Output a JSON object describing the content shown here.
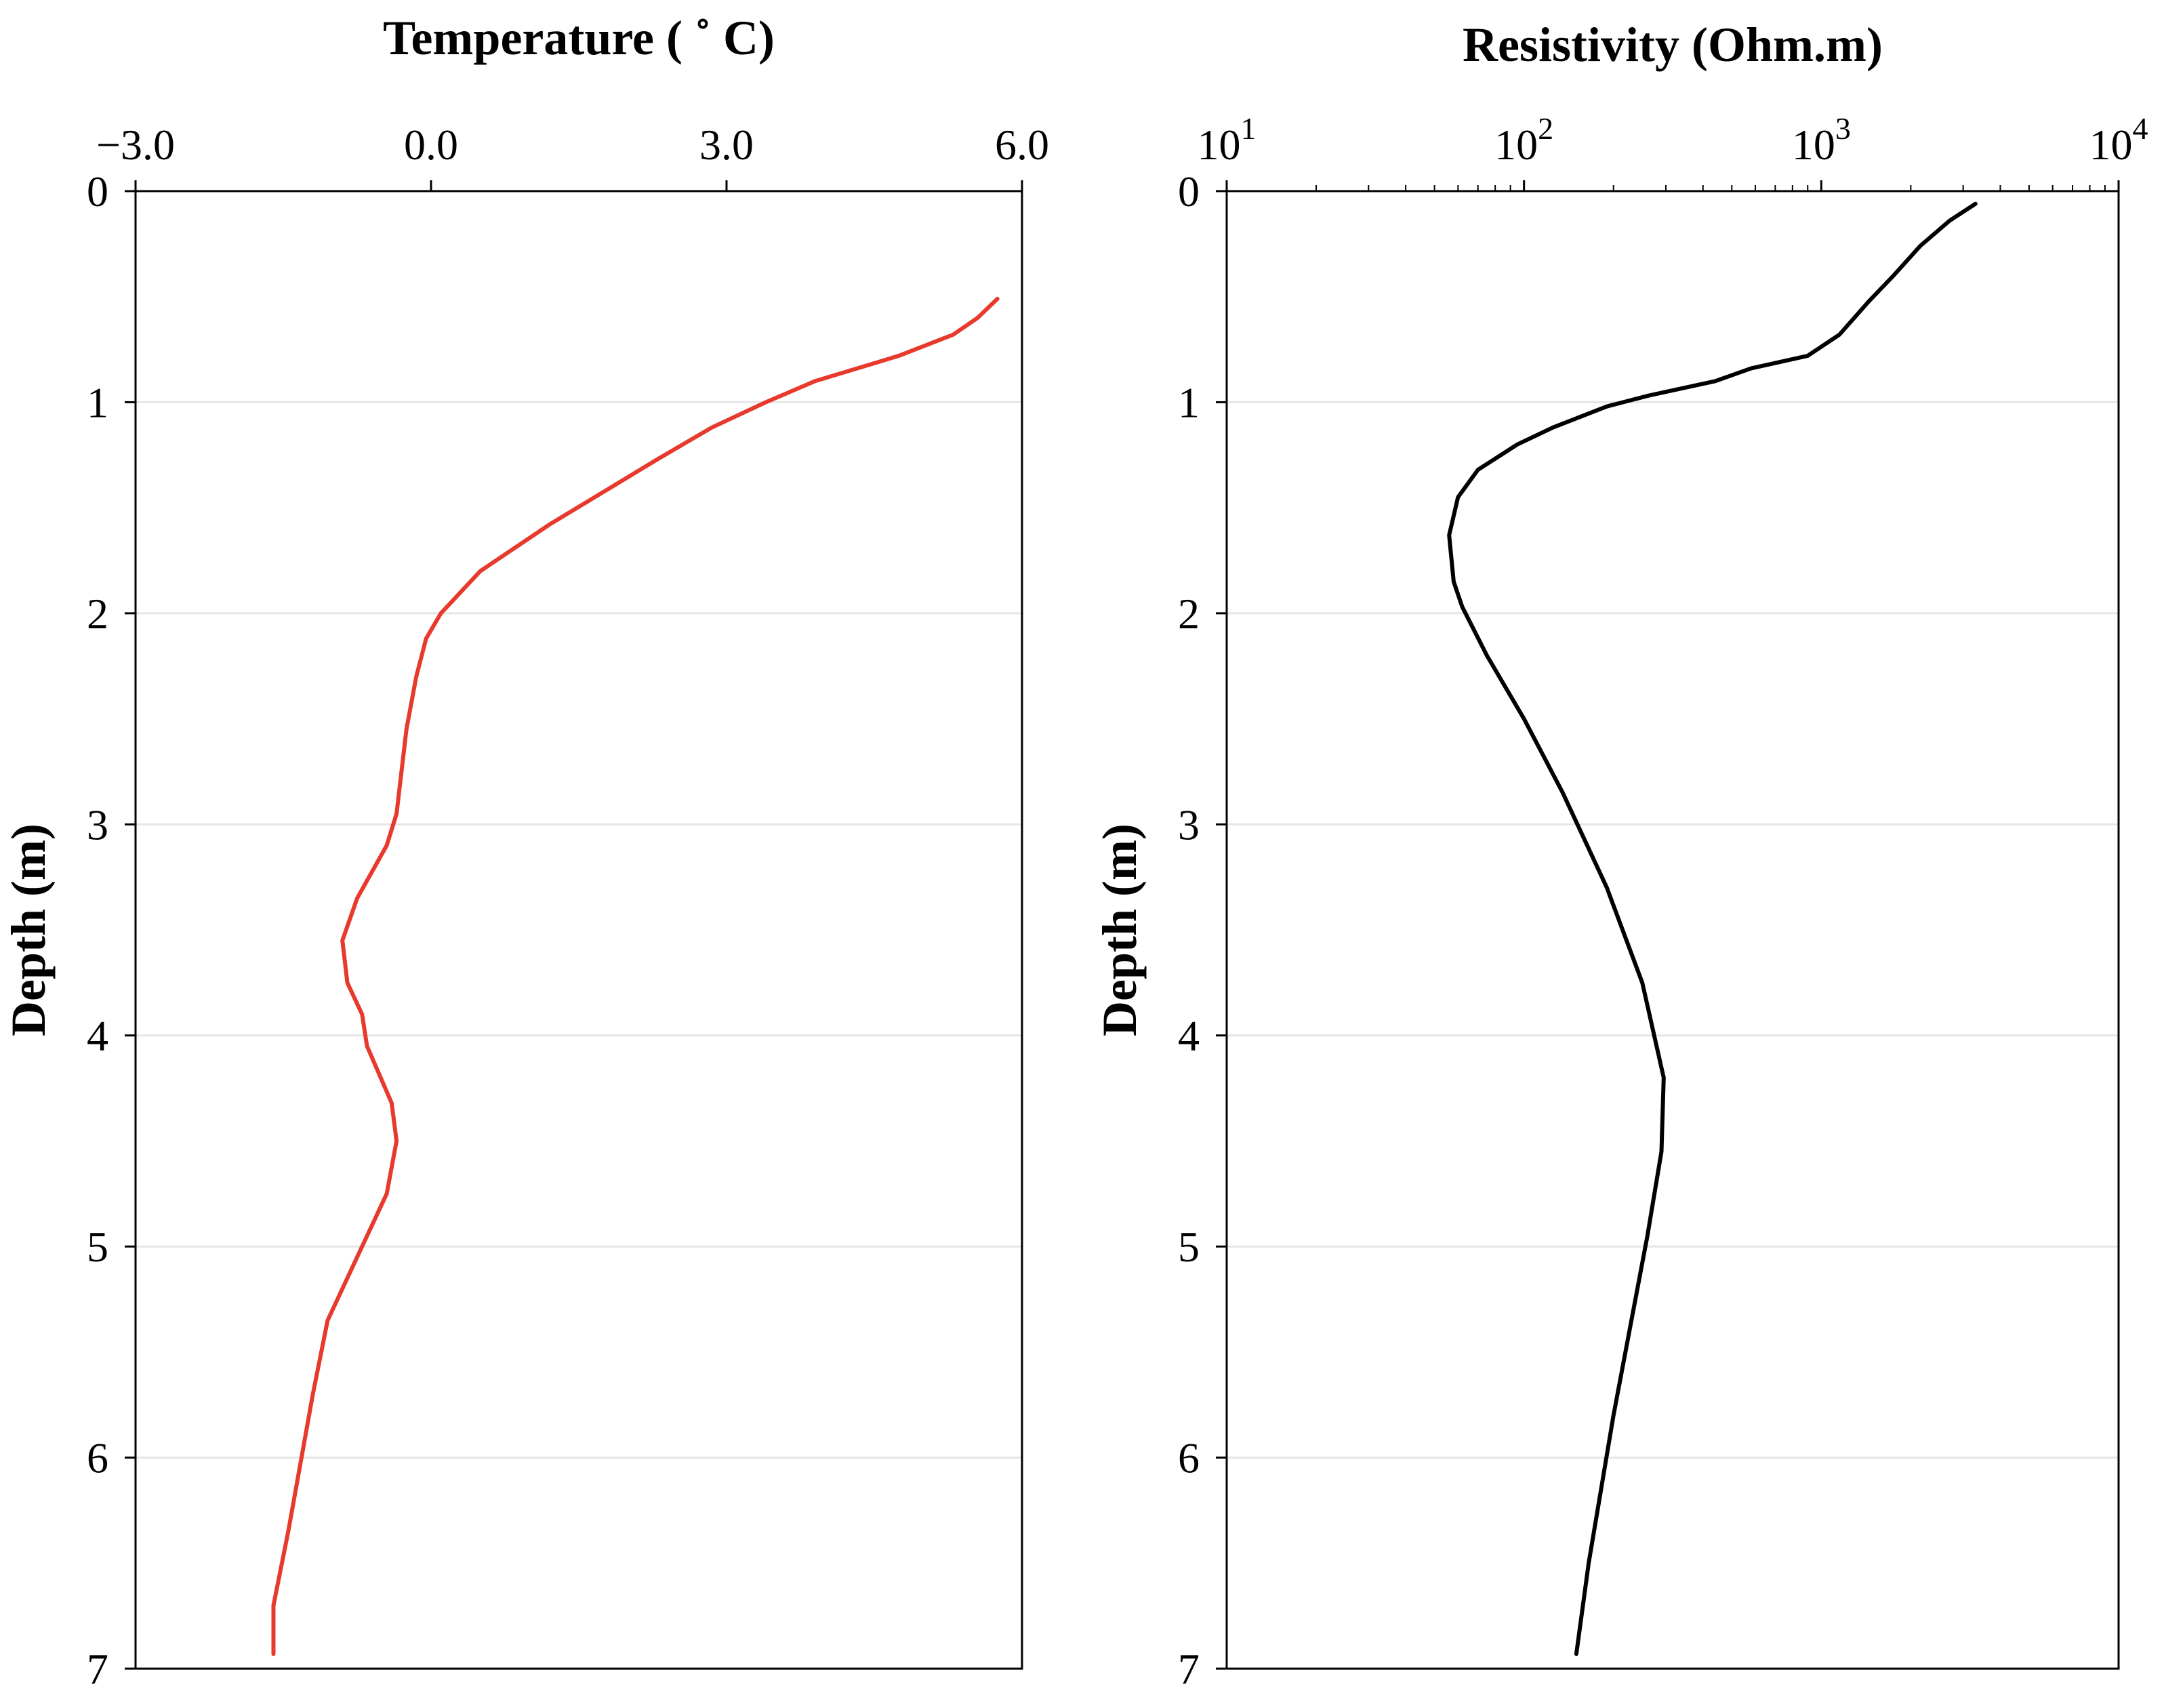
{
  "chart_data": [
    {
      "type": "line",
      "title": "Temperature ( ˚ C)",
      "xlabel": "Temperature ( ˚ C)",
      "ylabel": "Depth (m)",
      "xscale": "linear",
      "xlim": [
        -3.0,
        6.0
      ],
      "ylim": [
        0,
        7
      ],
      "y_inverted": true,
      "grid": "horizontal",
      "xaxis_position": "top",
      "xticks": [
        -3.0,
        0.0,
        3.0,
        6.0
      ],
      "xtick_labels": [
        "−3.0",
        "0.0",
        "3.0",
        "6.0"
      ],
      "yticks": [
        0,
        1,
        2,
        3,
        4,
        5,
        6,
        7
      ],
      "ytick_labels": [
        "0",
        "1",
        "2",
        "3",
        "4",
        "5",
        "6",
        "7"
      ],
      "series": [
        {
          "name": "Temperature",
          "color": "#e8392d",
          "points": [
            [
              5.75,
              0.51
            ],
            [
              5.55,
              0.6
            ],
            [
              5.3,
              0.68
            ],
            [
              4.75,
              0.78
            ],
            [
              3.9,
              0.9
            ],
            [
              3.4,
              1.0
            ],
            [
              2.85,
              1.12
            ],
            [
              2.3,
              1.27
            ],
            [
              1.2,
              1.58
            ],
            [
              0.5,
              1.8
            ],
            [
              0.1,
              2.0
            ],
            [
              -0.05,
              2.12
            ],
            [
              -0.15,
              2.3
            ],
            [
              -0.25,
              2.55
            ],
            [
              -0.35,
              2.95
            ],
            [
              -0.45,
              3.1
            ],
            [
              -0.75,
              3.35
            ],
            [
              -0.9,
              3.55
            ],
            [
              -0.85,
              3.75
            ],
            [
              -0.7,
              3.9
            ],
            [
              -0.65,
              4.05
            ],
            [
              -0.4,
              4.32
            ],
            [
              -0.35,
              4.5
            ],
            [
              -0.45,
              4.75
            ],
            [
              -1.05,
              5.35
            ],
            [
              -1.2,
              5.7
            ],
            [
              -1.45,
              6.35
            ],
            [
              -1.6,
              6.7
            ],
            [
              -1.6,
              6.93
            ]
          ]
        }
      ]
    },
    {
      "type": "line",
      "title": "Resistivity  (Ohm.m)",
      "xlabel": "Resistivity  (Ohm.m)",
      "ylabel": "Depth (m)",
      "xscale": "log",
      "xlim": [
        10,
        10000
      ],
      "ylim": [
        0,
        7
      ],
      "y_inverted": true,
      "grid": "horizontal",
      "xaxis_position": "top",
      "xticks": [
        10,
        100,
        1000,
        10000
      ],
      "xtick_labels": [
        {
          "base": "10",
          "exp": "1"
        },
        {
          "base": "10",
          "exp": "2"
        },
        {
          "base": "10",
          "exp": "3"
        },
        {
          "base": "10",
          "exp": "4"
        }
      ],
      "yticks": [
        0,
        1,
        2,
        3,
        4,
        5,
        6,
        7
      ],
      "ytick_labels": [
        "0",
        "1",
        "2",
        "3",
        "4",
        "5",
        "6",
        "7"
      ],
      "series": [
        {
          "name": "Resistivity",
          "color": "#000000",
          "points": [
            [
              3300,
              0.06
            ],
            [
              2700,
              0.14
            ],
            [
              2150,
              0.26
            ],
            [
              1750,
              0.4
            ],
            [
              1450,
              0.52
            ],
            [
              1150,
              0.68
            ],
            [
              900,
              0.78
            ],
            [
              580,
              0.84
            ],
            [
              440,
              0.9
            ],
            [
              260,
              0.97
            ],
            [
              190,
              1.02
            ],
            [
              125,
              1.12
            ],
            [
              95,
              1.2
            ],
            [
              70,
              1.32
            ],
            [
              60,
              1.45
            ],
            [
              56,
              1.63
            ],
            [
              58,
              1.85
            ],
            [
              62,
              1.97
            ],
            [
              75,
              2.2
            ],
            [
              100,
              2.5
            ],
            [
              135,
              2.85
            ],
            [
              190,
              3.3
            ],
            [
              250,
              3.75
            ],
            [
              295,
              4.2
            ],
            [
              290,
              4.55
            ],
            [
              260,
              4.95
            ],
            [
              200,
              5.8
            ],
            [
              165,
              6.5
            ],
            [
              150,
              6.93
            ]
          ]
        }
      ]
    }
  ]
}
